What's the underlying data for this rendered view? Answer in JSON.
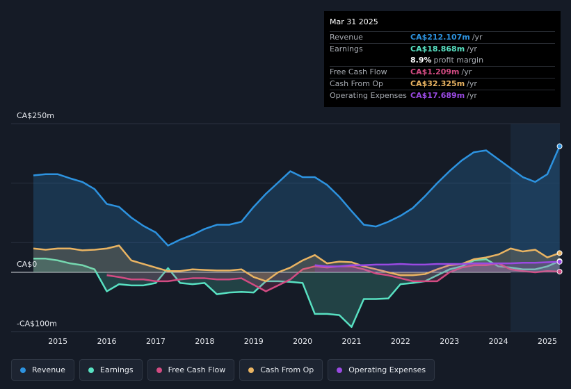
{
  "chart_data": {
    "type": "area",
    "y_unit": "CA$m",
    "ylim": [
      -100,
      250
    ],
    "y_ticks": [
      {
        "value": 250,
        "label": "CA$250m"
      },
      {
        "value": 0,
        "label": "CA$0"
      },
      {
        "value": -100,
        "label": "-CA$100m"
      }
    ],
    "x_range": [
      2014.4,
      2025.25
    ],
    "x_ticks": [
      "2015",
      "2016",
      "2017",
      "2018",
      "2019",
      "2020",
      "2021",
      "2022",
      "2023",
      "2024",
      "2025"
    ],
    "forecast_start": 2024.25,
    "series": [
      {
        "name": "Revenue",
        "color": "#2d93e0",
        "fill": true,
        "points": [
          [
            2014.5,
            163
          ],
          [
            2014.75,
            165
          ],
          [
            2015.0,
            165
          ],
          [
            2015.25,
            158
          ],
          [
            2015.5,
            152
          ],
          [
            2015.75,
            140
          ],
          [
            2016.0,
            115
          ],
          [
            2016.25,
            110
          ],
          [
            2016.5,
            92
          ],
          [
            2016.75,
            78
          ],
          [
            2017.0,
            67
          ],
          [
            2017.25,
            45
          ],
          [
            2017.5,
            55
          ],
          [
            2017.75,
            63
          ],
          [
            2018.0,
            73
          ],
          [
            2018.25,
            80
          ],
          [
            2018.5,
            80
          ],
          [
            2018.75,
            85
          ],
          [
            2019.0,
            110
          ],
          [
            2019.25,
            132
          ],
          [
            2019.5,
            151
          ],
          [
            2019.75,
            170
          ],
          [
            2020.0,
            160
          ],
          [
            2020.25,
            160
          ],
          [
            2020.5,
            147
          ],
          [
            2020.75,
            127
          ],
          [
            2021.0,
            103
          ],
          [
            2021.25,
            80
          ],
          [
            2021.5,
            77
          ],
          [
            2021.75,
            85
          ],
          [
            2022.0,
            95
          ],
          [
            2022.25,
            108
          ],
          [
            2022.5,
            128
          ],
          [
            2022.75,
            150
          ],
          [
            2023.0,
            170
          ],
          [
            2023.25,
            188
          ],
          [
            2023.5,
            202
          ],
          [
            2023.75,
            205
          ],
          [
            2024.0,
            190
          ],
          [
            2024.25,
            175
          ],
          [
            2024.5,
            160
          ],
          [
            2024.75,
            152
          ],
          [
            2025.0,
            165
          ],
          [
            2025.25,
            212
          ]
        ]
      },
      {
        "name": "Earnings",
        "color": "#58e1c2",
        "fill": true,
        "points": [
          [
            2014.5,
            23
          ],
          [
            2014.75,
            23
          ],
          [
            2015.0,
            20
          ],
          [
            2015.25,
            15
          ],
          [
            2015.5,
            12
          ],
          [
            2015.75,
            5
          ],
          [
            2016.0,
            -32
          ],
          [
            2016.25,
            -20
          ],
          [
            2016.5,
            -22
          ],
          [
            2016.75,
            -22
          ],
          [
            2017.0,
            -18
          ],
          [
            2017.25,
            7
          ],
          [
            2017.5,
            -18
          ],
          [
            2017.75,
            -20
          ],
          [
            2018.0,
            -18
          ],
          [
            2018.25,
            -37
          ],
          [
            2018.5,
            -34
          ],
          [
            2018.75,
            -33
          ],
          [
            2019.0,
            -34
          ],
          [
            2019.25,
            -15
          ],
          [
            2019.5,
            -15
          ],
          [
            2019.75,
            -16
          ],
          [
            2020.0,
            -18
          ],
          [
            2020.25,
            -70
          ],
          [
            2020.5,
            -70
          ],
          [
            2020.75,
            -72
          ],
          [
            2021.0,
            -92
          ],
          [
            2021.25,
            -45
          ],
          [
            2021.5,
            -45
          ],
          [
            2021.75,
            -44
          ],
          [
            2022.0,
            -20
          ],
          [
            2022.25,
            -18
          ],
          [
            2022.5,
            -15
          ],
          [
            2022.75,
            -5
          ],
          [
            2023.0,
            5
          ],
          [
            2023.25,
            10
          ],
          [
            2023.5,
            20
          ],
          [
            2023.75,
            22
          ],
          [
            2024.0,
            10
          ],
          [
            2024.25,
            8
          ],
          [
            2024.5,
            5
          ],
          [
            2024.75,
            5
          ],
          [
            2025.0,
            10
          ],
          [
            2025.25,
            18.868
          ]
        ]
      },
      {
        "name": "Free Cash Flow",
        "color": "#d24b82",
        "fill": true,
        "points": [
          [
            2016.0,
            -5
          ],
          [
            2016.25,
            -8
          ],
          [
            2016.5,
            -12
          ],
          [
            2016.75,
            -12
          ],
          [
            2017.0,
            -15
          ],
          [
            2017.25,
            -15
          ],
          [
            2017.5,
            -12
          ],
          [
            2017.75,
            -10
          ],
          [
            2018.0,
            -10
          ],
          [
            2018.25,
            -12
          ],
          [
            2018.5,
            -12
          ],
          [
            2018.75,
            -10
          ],
          [
            2019.25,
            -32
          ],
          [
            2019.5,
            -22
          ],
          [
            2019.75,
            -12
          ],
          [
            2020.0,
            5
          ],
          [
            2020.25,
            10
          ],
          [
            2020.5,
            8
          ],
          [
            2020.75,
            10
          ],
          [
            2021.0,
            10
          ],
          [
            2021.25,
            5
          ],
          [
            2021.5,
            -2
          ],
          [
            2021.75,
            -5
          ],
          [
            2022.0,
            -10
          ],
          [
            2022.25,
            -15
          ],
          [
            2022.5,
            -15
          ],
          [
            2022.75,
            -15
          ],
          [
            2023.0,
            0
          ],
          [
            2023.25,
            8
          ],
          [
            2023.5,
            12
          ],
          [
            2023.75,
            12
          ],
          [
            2024.0,
            15
          ],
          [
            2024.25,
            5
          ],
          [
            2024.5,
            2
          ],
          [
            2024.75,
            0
          ],
          [
            2025.0,
            2
          ],
          [
            2025.25,
            1.209
          ]
        ]
      },
      {
        "name": "Cash From Op",
        "color": "#eab462",
        "fill": true,
        "points": [
          [
            2014.5,
            40
          ],
          [
            2014.75,
            38
          ],
          [
            2015.0,
            40
          ],
          [
            2015.25,
            40
          ],
          [
            2015.5,
            37
          ],
          [
            2015.75,
            38
          ],
          [
            2016.0,
            40
          ],
          [
            2016.25,
            45
          ],
          [
            2016.5,
            20
          ],
          [
            2016.75,
            14
          ],
          [
            2017.0,
            8
          ],
          [
            2017.25,
            2
          ],
          [
            2017.5,
            2
          ],
          [
            2017.75,
            5
          ],
          [
            2018.0,
            4
          ],
          [
            2018.25,
            3
          ],
          [
            2018.5,
            3
          ],
          [
            2018.75,
            5
          ],
          [
            2019.0,
            -8
          ],
          [
            2019.25,
            -15
          ],
          [
            2019.5,
            0
          ],
          [
            2019.75,
            8
          ],
          [
            2020.0,
            20
          ],
          [
            2020.25,
            29
          ],
          [
            2020.5,
            15
          ],
          [
            2020.75,
            18
          ],
          [
            2021.0,
            17
          ],
          [
            2021.25,
            10
          ],
          [
            2021.5,
            5
          ],
          [
            2021.75,
            0
          ],
          [
            2022.0,
            -5
          ],
          [
            2022.25,
            -5
          ],
          [
            2022.5,
            -3
          ],
          [
            2022.75,
            5
          ],
          [
            2023.0,
            12
          ],
          [
            2023.25,
            14
          ],
          [
            2023.5,
            22
          ],
          [
            2023.75,
            25
          ],
          [
            2024.0,
            30
          ],
          [
            2024.25,
            40
          ],
          [
            2024.5,
            35
          ],
          [
            2024.75,
            38
          ],
          [
            2025.0,
            25
          ],
          [
            2025.25,
            32.325
          ]
        ]
      },
      {
        "name": "Operating Expenses",
        "color": "#9a4ae3",
        "fill": true,
        "points": [
          [
            2020.25,
            12
          ],
          [
            2020.5,
            10
          ],
          [
            2020.75,
            10
          ],
          [
            2021.0,
            12
          ],
          [
            2021.25,
            12
          ],
          [
            2021.5,
            13
          ],
          [
            2021.75,
            13
          ],
          [
            2022.0,
            14
          ],
          [
            2022.25,
            13
          ],
          [
            2022.5,
            13
          ],
          [
            2022.75,
            14
          ],
          [
            2023.0,
            14
          ],
          [
            2023.25,
            14
          ],
          [
            2023.5,
            15
          ],
          [
            2023.75,
            15
          ],
          [
            2024.0,
            15
          ],
          [
            2024.25,
            15
          ],
          [
            2024.5,
            16
          ],
          [
            2024.75,
            16
          ],
          [
            2025.0,
            17
          ],
          [
            2025.25,
            17.689
          ]
        ]
      }
    ]
  },
  "tooltip": {
    "date": "Mar 31 2025",
    "rows": [
      {
        "label": "Revenue",
        "value": "CA$212.107m",
        "unit": "/yr",
        "color": "#2d93e0"
      },
      {
        "label": "Earnings",
        "value": "CA$18.868m",
        "unit": "/yr",
        "color": "#58e1c2"
      },
      {
        "label": "",
        "value": "8.9%",
        "unit": "profit margin",
        "color": "#ffffff"
      },
      {
        "label": "Free Cash Flow",
        "value": "CA$1.209m",
        "unit": "/yr",
        "color": "#d24b82"
      },
      {
        "label": "Cash From Op",
        "value": "CA$32.325m",
        "unit": "/yr",
        "color": "#eab462"
      },
      {
        "label": "Operating Expenses",
        "value": "CA$17.689m",
        "unit": "/yr",
        "color": "#9a4ae3"
      }
    ]
  },
  "legend": [
    {
      "label": "Revenue",
      "color": "#2d93e0"
    },
    {
      "label": "Earnings",
      "color": "#58e1c2"
    },
    {
      "label": "Free Cash Flow",
      "color": "#d24b82"
    },
    {
      "label": "Cash From Op",
      "color": "#eab462"
    },
    {
      "label": "Operating Expenses",
      "color": "#9a4ae3"
    }
  ]
}
